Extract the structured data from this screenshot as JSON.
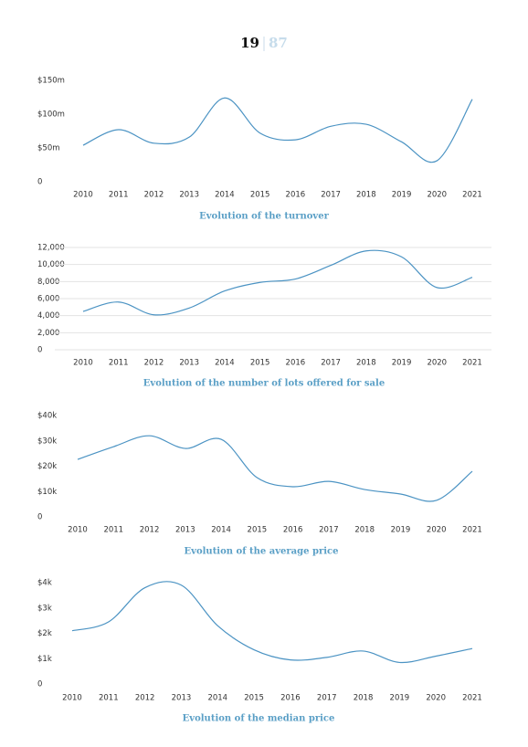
{
  "page": {
    "number": "19",
    "total": "87"
  },
  "chart_data": [
    {
      "type": "line",
      "title": "Evolution of the turnover",
      "categories": [
        "2010",
        "2011",
        "2012",
        "2013",
        "2014",
        "2015",
        "2016",
        "2017",
        "2018",
        "2019",
        "2020",
        "2021"
      ],
      "values": [
        54,
        77,
        57,
        66,
        124,
        72,
        62,
        82,
        85,
        59,
        31,
        122
      ],
      "color": "#4b93c3",
      "ylim": [
        0,
        150
      ],
      "yticks": [
        0,
        {
          "value": 50,
          "label": "$50m"
        },
        {
          "value": 100,
          "label": "$100m"
        },
        {
          "value": 150,
          "label": "$150m"
        }
      ],
      "grid": false
    },
    {
      "type": "line",
      "title": "Evolution of the number of lots offered for sale",
      "categories": [
        "2010",
        "2011",
        "2012",
        "2013",
        "2014",
        "2015",
        "2016",
        "2017",
        "2018",
        "2019",
        "2020",
        "2021"
      ],
      "values": [
        4500,
        5600,
        4100,
        4900,
        6900,
        7900,
        8300,
        9900,
        11600,
        10900,
        7300,
        8500
      ],
      "color": "#4b93c3",
      "ylim": [
        0,
        12000
      ],
      "yticks": [
        0,
        {
          "value": 2000,
          "label": "2,000"
        },
        {
          "value": 4000,
          "label": "4,000"
        },
        {
          "value": 6000,
          "label": "6,000"
        },
        {
          "value": 8000,
          "label": "8,000"
        },
        {
          "value": 10000,
          "label": "10,000"
        },
        {
          "value": 12000,
          "label": "12,000"
        }
      ],
      "grid": true
    },
    {
      "type": "line",
      "title": "Evolution of the average price",
      "categories": [
        "2010",
        "2011",
        "2012",
        "2013",
        "2014",
        "2015",
        "2016",
        "2017",
        "2018",
        "2019",
        "2020",
        "2021"
      ],
      "values": [
        22.7,
        27.7,
        32,
        27,
        30.6,
        15.5,
        11.9,
        14,
        10.8,
        9,
        6.5,
        18
      ],
      "color": "#4b93c3",
      "ylim": [
        0,
        40
      ],
      "yticks": [
        0,
        {
          "value": 10,
          "label": "$10k"
        },
        {
          "value": 20,
          "label": "$20k"
        },
        {
          "value": 30,
          "label": "$30k"
        },
        {
          "value": 40,
          "label": "$40k"
        }
      ],
      "grid": false
    },
    {
      "type": "line",
      "title": "Evolution of the median price",
      "categories": [
        "2010",
        "2011",
        "2012",
        "2013",
        "2014",
        "2015",
        "2016",
        "2017",
        "2018",
        "2019",
        "2020",
        "2021"
      ],
      "values": [
        2.1,
        2.45,
        3.8,
        3.9,
        2.3,
        1.35,
        0.95,
        1.05,
        1.3,
        0.85,
        1.1,
        1.4
      ],
      "color": "#4b93c3",
      "ylim": [
        0,
        4
      ],
      "yticks": [
        0,
        {
          "value": 1,
          "label": "$1k"
        },
        {
          "value": 2,
          "label": "$2k"
        },
        {
          "value": 3,
          "label": "$3k"
        },
        {
          "value": 4,
          "label": "$4k"
        }
      ],
      "grid": false
    }
  ]
}
